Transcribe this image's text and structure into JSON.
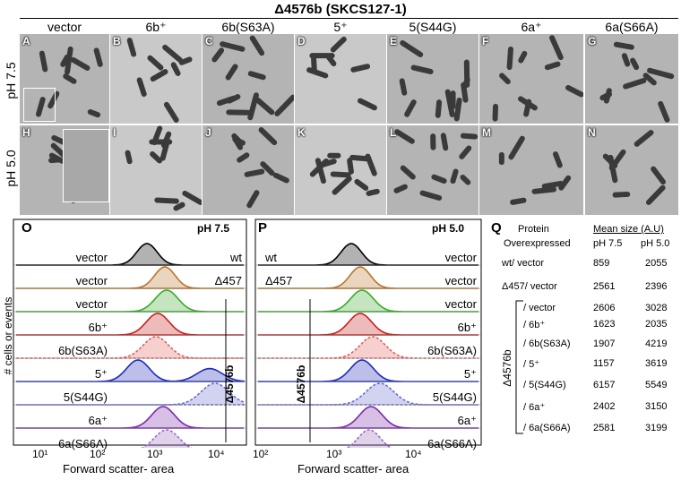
{
  "figure": {
    "title": "Δ4576b (SKCS127-1)",
    "micrographs": {
      "columns": [
        "vector",
        "6b⁺",
        "6b(S63A)",
        "5⁺",
        "5(S44G)",
        "6a⁺",
        "6a(S66A)"
      ],
      "rows": [
        {
          "label": "pH 7.5",
          "panels": [
            "A",
            "B",
            "C",
            "D",
            "E",
            "F",
            "G"
          ]
        },
        {
          "label": "pH 5.0",
          "panels": [
            "H",
            "I",
            "J",
            "K",
            "L",
            "M",
            "N"
          ]
        }
      ]
    },
    "histograms": [
      {
        "panel": "O",
        "ph": "pH 7.5",
        "rows_left": [
          "vector",
          "vector",
          "vector",
          "6b⁺",
          "6b(S63A)",
          "5⁺",
          "5(S44G)",
          "6a⁺",
          "6a(S66A)"
        ],
        "rows_right": [
          "wt",
          "Δ457",
          "",
          "",
          "",
          "",
          "",
          "",
          ""
        ],
        "bracket_label": "Δ4576b",
        "x_ticks": [
          "10¹",
          "10²",
          "10³",
          "10⁴"
        ],
        "xlabel": "Forward scatter- area",
        "ylabel": "# cells or events"
      },
      {
        "panel": "P",
        "ph": "pH 5.0",
        "rows_left": [
          "wt",
          "Δ457",
          "",
          "",
          "",
          "",
          "",
          "",
          ""
        ],
        "rows_right": [
          "vector",
          "vector",
          "vector",
          "6b⁺",
          "6b(S63A)",
          "5⁺",
          "5(S44G)",
          "6a⁺",
          "6a(S66A)"
        ],
        "bracket_label": "Δ4576b",
        "x_ticks": [
          "10²",
          "10³",
          "10⁴"
        ],
        "xlabel": "Forward scatter- area"
      }
    ],
    "table": {
      "panel": "Q",
      "header": {
        "col1_line1": "Protein",
        "col1_line2": "Overexpressed",
        "span": "Mean size (A.U)",
        "ph1": "pH 7.5",
        "ph2": "pH 5.0"
      },
      "bracket_label": "Δ4576b",
      "rows": [
        {
          "protein": "wt/ vector",
          "ph75": "859",
          "ph50": "2055"
        },
        {
          "protein": "Δ457/ vector",
          "ph75": "2561",
          "ph50": "2396"
        },
        {
          "protein": "/ vector",
          "ph75": "2606",
          "ph50": "3028"
        },
        {
          "protein": "/ 6b⁺",
          "ph75": "1623",
          "ph50": "2035"
        },
        {
          "protein": "/ 6b(S63A)",
          "ph75": "1907",
          "ph50": "4219"
        },
        {
          "protein": "/ 5⁺",
          "ph75": "1157",
          "ph50": "3619"
        },
        {
          "protein": "/ 5(S44G)",
          "ph75": "6157",
          "ph50": "5549"
        },
        {
          "protein": "/ 6a⁺",
          "ph75": "2402",
          "ph50": "3150"
        },
        {
          "protein": "/ 6a(S66A)",
          "ph75": "2581",
          "ph50": "3199"
        }
      ]
    },
    "histogram_colors": [
      "#000000",
      "#b8742a",
      "#3aaa2a",
      "#c81e1e",
      "#e06060",
      "#1e2ab8",
      "#6a6ad0",
      "#7a2aa8",
      "#9a6ac0"
    ]
  }
}
